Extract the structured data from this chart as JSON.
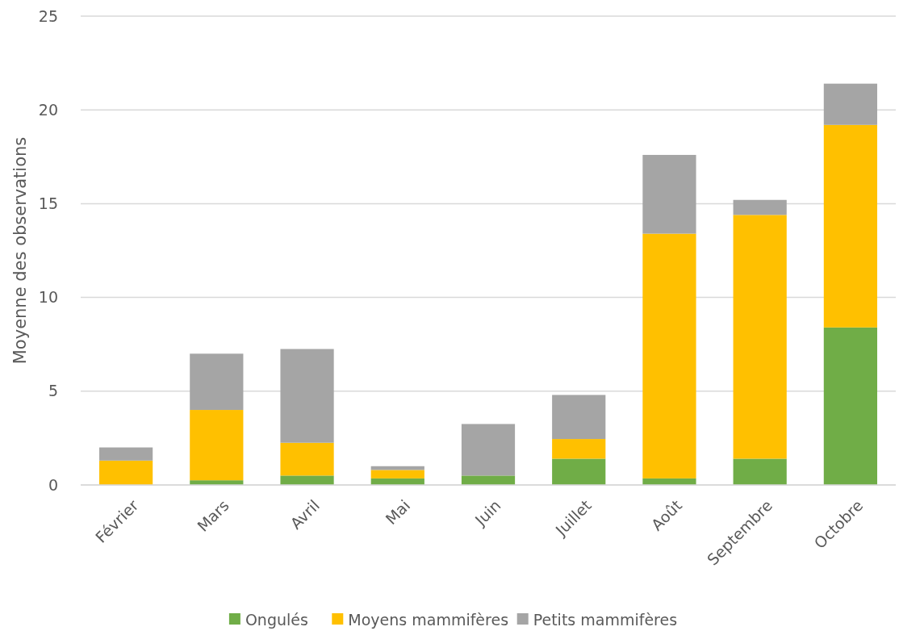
{
  "chart_data": {
    "type": "bar",
    "stacked": true,
    "ylabel": "Moyenne des observations",
    "categories": [
      "Février",
      "Mars",
      "Avril",
      "Mai",
      "Juin",
      "Juillet",
      "Août",
      "Septembre",
      "Octobre"
    ],
    "series": [
      {
        "name": "Ongulés",
        "color": "#70ad47",
        "values": [
          0,
          0.25,
          0.5,
          0.35,
          0.5,
          1.4,
          0.35,
          1.4,
          8.4
        ]
      },
      {
        "name": "Moyens mammifères",
        "color": "#ffc000",
        "values": [
          1.3,
          3.75,
          1.75,
          0.45,
          0,
          1.05,
          13.05,
          13.0,
          10.8
        ]
      },
      {
        "name": "Petits mammifères",
        "color": "#a5a5a5",
        "values": [
          0.7,
          3.0,
          5.0,
          0.2,
          2.75,
          2.35,
          4.2,
          0.8,
          2.2
        ]
      }
    ],
    "ylim": [
      0,
      25
    ],
    "yticks": [
      0,
      5,
      10,
      15,
      20,
      25
    ],
    "grid": "y",
    "legend": "bottom"
  }
}
